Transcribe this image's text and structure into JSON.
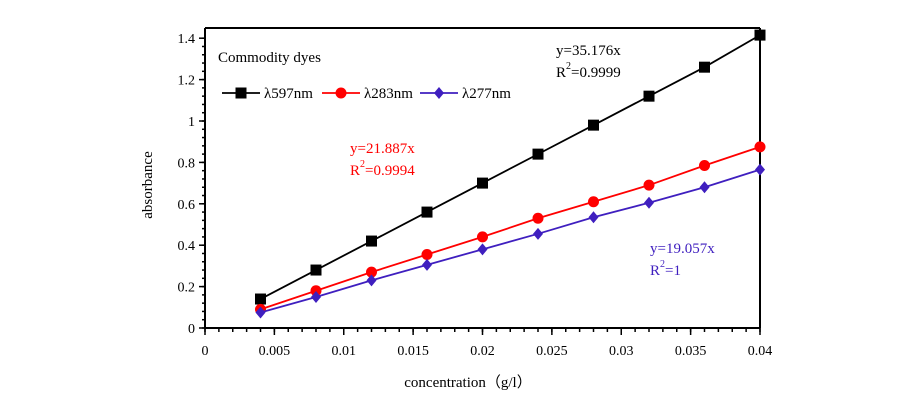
{
  "chart_data": {
    "type": "line",
    "title": "",
    "legend_title": "Commodity dyes",
    "legend_position": "top-left",
    "xlabel": "concentration（g/l）",
    "ylabel": "absorbance",
    "xlim": [
      0,
      0.04
    ],
    "ylim": [
      0,
      1.45
    ],
    "xticks": [
      0,
      0.005,
      0.01,
      0.015,
      0.02,
      0.025,
      0.03,
      0.035,
      0.04
    ],
    "xtick_labels": [
      "0",
      "0.005",
      "0.01",
      "0.015",
      "0.02",
      "0.025",
      "0.03",
      "0.035",
      "0.04"
    ],
    "yticks": [
      0,
      0.2,
      0.4,
      0.6,
      0.8,
      1.0,
      1.2,
      1.4
    ],
    "ytick_labels": [
      "0",
      "0.2",
      "0.4",
      "0.6",
      "0.8",
      "1",
      "1.2",
      "1.4"
    ],
    "grid": false,
    "x": [
      0.004,
      0.008,
      0.012,
      0.016,
      0.02,
      0.024,
      0.028,
      0.032,
      0.036,
      0.04
    ],
    "series": [
      {
        "name": "λ597nm",
        "color": "#000000",
        "marker": "square",
        "values": [
          0.14,
          0.28,
          0.42,
          0.56,
          0.7,
          0.84,
          0.98,
          1.12,
          1.26,
          1.415
        ],
        "equation": "y=35.176x",
        "r2_prefix": "R",
        "r2_value": "=0.9999"
      },
      {
        "name": "λ283nm",
        "color": "#ff0000",
        "marker": "circle",
        "values": [
          0.09,
          0.18,
          0.27,
          0.355,
          0.44,
          0.53,
          0.61,
          0.69,
          0.785,
          0.875
        ],
        "equation": "y=21.887x",
        "r2_prefix": "R",
        "r2_value": "=0.9994"
      },
      {
        "name": "λ277nm",
        "color": "#3f1fbf",
        "marker": "diamond",
        "values": [
          0.075,
          0.15,
          0.23,
          0.305,
          0.38,
          0.455,
          0.535,
          0.605,
          0.68,
          0.765
        ],
        "equation": "y=19.057x",
        "r2_prefix": "R",
        "r2_value": "=1"
      }
    ],
    "r2_superscript": "2"
  }
}
